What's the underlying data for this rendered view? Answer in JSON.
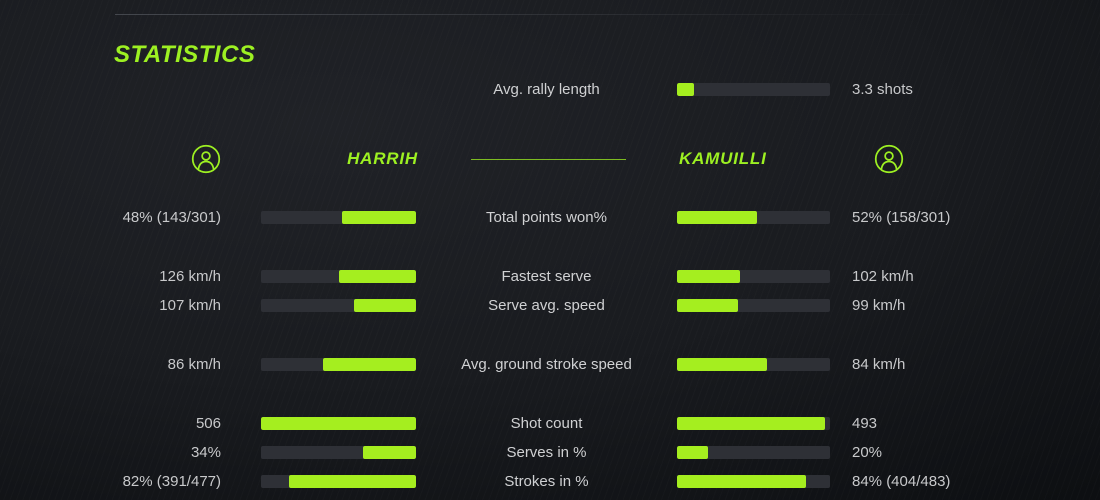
{
  "colors": {
    "accent": "#9df022",
    "bar_fill": "#a5ee1f",
    "bar_track": "#2e3036",
    "text": "#c8c9cb"
  },
  "header": {
    "title": "STATISTICS"
  },
  "rally": {
    "label": "Avg. rally length",
    "value": "3.3 shots",
    "fill_pct": 11
  },
  "players": {
    "left": {
      "name": "HARRIH",
      "icon": "person-circle-icon"
    },
    "right": {
      "name": "KAMUILLI",
      "icon": "person-circle-icon"
    }
  },
  "chart_data": {
    "type": "bar",
    "title": "STATISTICS",
    "layout": "mirrored horizontal comparison bars with center category labels; left bars fill right-to-left, right bars fill left-to-right",
    "categories": [
      "Total points won%",
      "Fastest serve",
      "Serve avg. speed",
      "Avg. ground stroke speed",
      "Shot count",
      "Serves in %",
      "Strokes in %"
    ],
    "series": [
      {
        "name": "HARRIH",
        "display_values": [
          "48% (143/301)",
          "126 km/h",
          "107 km/h",
          "86 km/h",
          "506",
          "34%",
          "82% (391/477)"
        ],
        "fill_pct": [
          48,
          50,
          40,
          60,
          100,
          34,
          82
        ]
      },
      {
        "name": "KAMUILLI",
        "display_values": [
          "52% (158/301)",
          "102 km/h",
          "99 km/h",
          "84 km/h",
          "493",
          "20%",
          "84% (404/483)"
        ],
        "fill_pct": [
          52,
          41,
          40,
          59,
          97,
          20,
          84
        ]
      }
    ],
    "groups": [
      [
        0
      ],
      [
        1,
        2
      ],
      [
        3
      ],
      [
        4,
        5,
        6
      ]
    ],
    "extra_row": {
      "label": "Avg. rally length",
      "value": "3.3 shots",
      "fill_pct": 11
    }
  }
}
